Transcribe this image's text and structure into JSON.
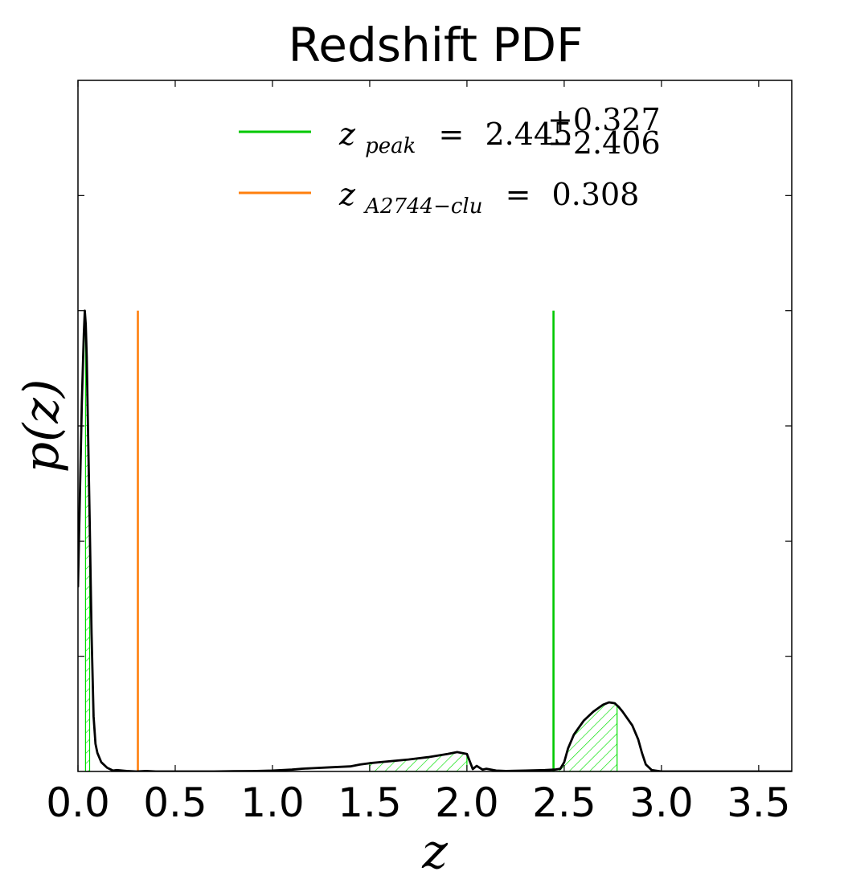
{
  "chart_data": {
    "type": "line",
    "title": "Redshift PDF",
    "xlabel": "z",
    "ylabel": "p(z)",
    "xlim": [
      0.0,
      3.67
    ],
    "ylim": [
      0.0,
      1.5
    ],
    "x_ticks": [
      "0.0",
      "0.5",
      "1.0",
      "1.5",
      "2.0",
      "2.5",
      "3.0",
      "3.5"
    ],
    "x_tick_values": [
      0.0,
      0.5,
      1.0,
      1.5,
      2.0,
      2.5,
      3.0,
      3.5
    ],
    "y_tick_values": [
      0.25,
      0.5,
      0.75,
      1.0,
      1.25
    ],
    "y_tick_labels_shown": false,
    "grid": false,
    "legend_position": "top-center",
    "series": [
      {
        "color": "#000000",
        "x": [
          0.0,
          0.01,
          0.02,
          0.03,
          0.035,
          0.04,
          0.045,
          0.05,
          0.06,
          0.07,
          0.08,
          0.09,
          0.1,
          0.12,
          0.15,
          0.18,
          0.2,
          0.25,
          0.3,
          0.35,
          0.4,
          0.5,
          0.6,
          0.7,
          0.8,
          0.9,
          1.0,
          1.1,
          1.15,
          1.2,
          1.3,
          1.4,
          1.45,
          1.5,
          1.55,
          1.6,
          1.7,
          1.8,
          1.9,
          1.95,
          2.0,
          2.03,
          2.05,
          2.08,
          2.1,
          2.15,
          2.2,
          2.3,
          2.4,
          2.45,
          2.48,
          2.5,
          2.52,
          2.55,
          2.6,
          2.65,
          2.7,
          2.73,
          2.76,
          2.78,
          2.8,
          2.85,
          2.88,
          2.9,
          2.92,
          2.95,
          3.0,
          3.2,
          3.5,
          3.67
        ],
        "y": [
          0.4,
          0.6,
          0.8,
          0.95,
          1.0,
          0.97,
          0.9,
          0.78,
          0.55,
          0.3,
          0.12,
          0.06,
          0.04,
          0.02,
          0.008,
          0.002,
          0.003,
          0.001,
          0.0,
          0.001,
          0.0,
          0.0,
          0.0,
          0.0,
          0.0005,
          0.0008,
          0.002,
          0.004,
          0.006,
          0.007,
          0.009,
          0.011,
          0.015,
          0.018,
          0.02,
          0.022,
          0.026,
          0.031,
          0.038,
          0.042,
          0.038,
          0.005,
          0.012,
          0.004,
          0.006,
          0.002,
          0.001,
          0.002,
          0.003,
          0.004,
          0.006,
          0.02,
          0.05,
          0.08,
          0.11,
          0.13,
          0.145,
          0.15,
          0.148,
          0.14,
          0.13,
          0.1,
          0.07,
          0.04,
          0.015,
          0.003,
          0.0,
          0.0,
          0.0,
          0.0
        ]
      },
      {
        "name": "z_peak",
        "color": "#00c800",
        "type": "vline",
        "x": 2.445,
        "y_top": 1.0
      },
      {
        "name": "z_A2744-clu",
        "color": "#ff7f0e",
        "type": "vline",
        "x": 0.308,
        "y_top": 1.0
      }
    ],
    "shaded_regions": [
      {
        "x_range": [
          0.039,
          0.06
        ],
        "fill": "hatch",
        "color": "#00e000"
      },
      {
        "x_range": [
          1.5,
          2.0
        ],
        "fill": "hatch",
        "color": "#00e000"
      },
      {
        "x_range": [
          2.445,
          2.772
        ],
        "fill": "hatch",
        "color": "#00e000"
      }
    ],
    "legend": [
      {
        "symbol_base": "z",
        "subscript": "peak",
        "equals": "=",
        "value": "2.445",
        "sup": "+0.327",
        "sub": "−2.406",
        "color": "#00c800"
      },
      {
        "symbol_base": "z",
        "subscript": "A2744−clu",
        "equals": "=",
        "value": "0.308",
        "color": "#ff7f0e"
      }
    ]
  }
}
